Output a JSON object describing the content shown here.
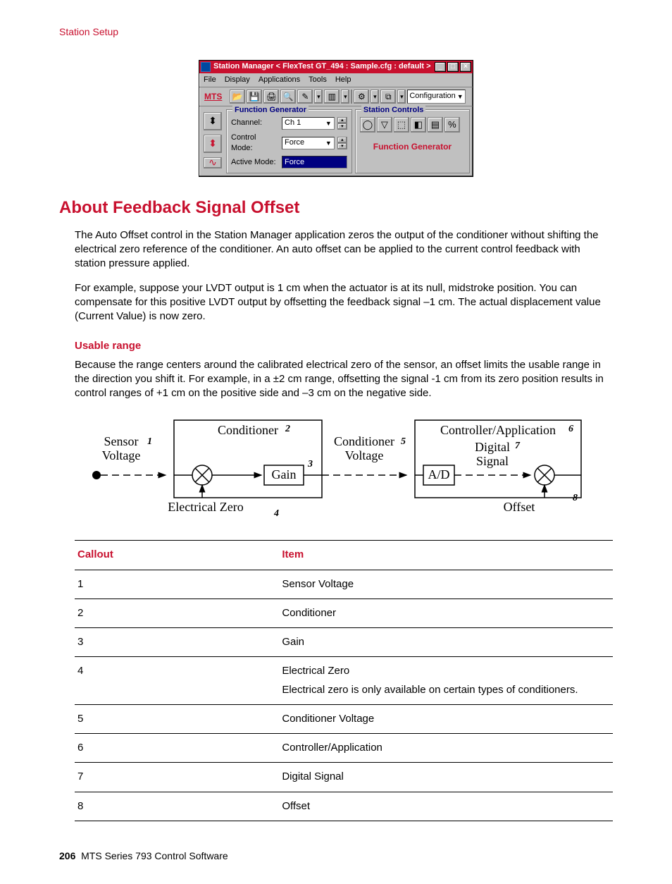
{
  "header": {
    "section": "Station Setup"
  },
  "screenshot": {
    "title": "Station Manager  < FlexTest GT_494 : Sample.cfg : default >",
    "menus": [
      "File",
      "Display",
      "Applications",
      "Tools",
      "Help"
    ],
    "logo": "MTS",
    "config_dd": "Configuration",
    "fg": {
      "title": "Function Generator",
      "channel_label": "Channel:",
      "channel_value": "Ch 1",
      "control_mode_label": "Control Mode:",
      "control_mode_value": "Force",
      "active_mode_label": "Active Mode:",
      "active_mode_value": "Force"
    },
    "sc": {
      "title": "Station Controls",
      "fg_label": "Function Generator"
    }
  },
  "heading": "About Feedback Signal Offset",
  "para1": "The Auto Offset control in the Station Manager application zeros the output of the conditioner without shifting the electrical zero reference of the conditioner. An auto offset can be applied to the current control feedback with station pressure applied.",
  "para2": "For example, suppose your LVDT output is 1 cm when the actuator is at its null, midstroke position. You can compensate for this positive LVDT output by offsetting the feedback signal –1 cm. The actual displacement value (Current Value) is now zero.",
  "sub1": "Usable range",
  "para3": "Because the range centers around the calibrated electrical zero of the sensor, an offset limits the usable range in the direction you shift it. For example, in a ±2 cm range, offsetting the signal -1 cm from its zero position results in control ranges of +1 cm on the positive side and –3 cm on the negative side.",
  "diagram": {
    "sensor": "Sensor",
    "voltage": "Voltage",
    "conditioner": "Conditioner",
    "gain": "Gain",
    "electrical_zero": "Electrical Zero",
    "conditioner2": "Conditioner",
    "voltage2": "Voltage",
    "ad": "A/D",
    "controller_app": "Controller/Application",
    "digital": "Digital",
    "signal": "Signal",
    "offset": "Offset",
    "n1": "1",
    "n2": "2",
    "n3": "3",
    "n4": "4",
    "n5": "5",
    "n6": "6",
    "n7": "7",
    "n8": "8",
    "colors": {
      "stroke": "#000000",
      "text": "#000000"
    }
  },
  "table": {
    "headers": [
      "Callout",
      "Item"
    ],
    "rows": [
      {
        "c": "1",
        "i": "Sensor Voltage"
      },
      {
        "c": "2",
        "i": "Conditioner"
      },
      {
        "c": "3",
        "i": "Gain"
      },
      {
        "c": "4",
        "i": "Electrical Zero",
        "sub": "Electrical zero is only available on certain types of conditioners."
      },
      {
        "c": "5",
        "i": "Conditioner Voltage"
      },
      {
        "c": "6",
        "i": "Controller/Application"
      },
      {
        "c": "7",
        "i": "Digital Signal"
      },
      {
        "c": "8",
        "i": "Offset"
      }
    ]
  },
  "footer": {
    "page": "206",
    "text": "MTS Series 793 Control Software"
  }
}
